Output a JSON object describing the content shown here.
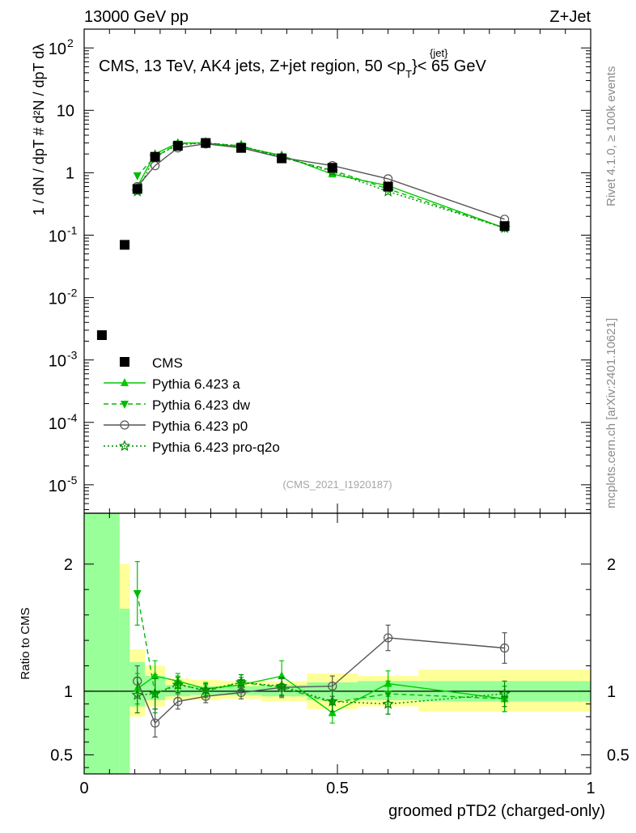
{
  "header": {
    "left": "13000 GeV pp",
    "right": "Z+Jet"
  },
  "side": {
    "rivet": "Rivet 4.1.0, ≥ 100k events",
    "mcplots": "mcplots.cern.ch [arXiv:2401.10621]"
  },
  "chart_data": {
    "type": "line",
    "title": "CMS, 13 TeV, AK4 jets, Z+jet region, 50 <",
    "title_sup": "{jet}",
    "title_sub": "T",
    "title_p": "p",
    "title_end": "}< 65 GeV",
    "analysis_id": "(CMS_2021_I1920187)",
    "xlabel": "groomed pTD2 (charged-only)",
    "ylabel_main": "1 / dN / dpT # d²N / dpT dλ",
    "ylabel_ratio": "Ratio to CMS",
    "xlim": [
      0,
      1
    ],
    "ylim_main": [
      3.5e-06,
      200
    ],
    "ylim_ratio": [
      0.35,
      2.4
    ],
    "x_ticks": [
      "0",
      "0.5",
      "1"
    ],
    "y_ticks_main": [
      "10",
      "1"
    ],
    "y_ticks_main_exp": [
      {
        "base": "10",
        "exp": "2"
      },
      {
        "base": "10",
        "exp": "-1"
      },
      {
        "base": "10",
        "exp": "-2"
      },
      {
        "base": "10",
        "exp": "-3"
      },
      {
        "base": "10",
        "exp": "-4"
      },
      {
        "base": "10",
        "exp": "-5"
      }
    ],
    "y_ticks_ratio": [
      "2",
      "1",
      "0.5"
    ],
    "cms": {
      "name": "CMS",
      "x": [
        0.035,
        0.08,
        0.105,
        0.14,
        0.185,
        0.24,
        0.31,
        0.39,
        0.49,
        0.6,
        0.83
      ],
      "y": [
        0.0025,
        0.07,
        0.55,
        1.8,
        2.7,
        3.0,
        2.5,
        1.7,
        1.2,
        0.6,
        0.14
      ]
    },
    "series": [
      {
        "name": "Pythia 6.423 a",
        "color": "#00cc00",
        "dash": "",
        "marker": "triangle-up",
        "x": [
          0.105,
          0.14,
          0.185,
          0.24,
          0.31,
          0.39,
          0.49,
          0.6,
          0.83
        ],
        "y": [
          0.6,
          2.0,
          3.0,
          3.0,
          2.6,
          1.9,
          0.95,
          0.62,
          0.13
        ],
        "ratio": [
          1.02,
          1.12,
          1.08,
          1.02,
          1.05,
          1.12,
          0.83,
          1.06,
          0.94
        ],
        "ratio_err": [
          0.12,
          0.12,
          0.06,
          0.05,
          0.06,
          0.12,
          0.08,
          0.1,
          0.1
        ]
      },
      {
        "name": "Pythia 6.423 dw",
        "color": "#00bb00",
        "dash": "6,4",
        "marker": "triangle-down",
        "x": [
          0.105,
          0.14,
          0.185,
          0.24,
          0.31,
          0.39,
          0.49,
          0.6,
          0.83
        ],
        "y": [
          0.9,
          1.8,
          2.9,
          3.0,
          2.7,
          1.75,
          1.1,
          0.55,
          0.13
        ],
        "ratio": [
          1.77,
          0.98,
          1.06,
          1.0,
          1.07,
          1.03,
          0.91,
          0.98,
          0.94
        ],
        "ratio_err": [
          0.25,
          0.15,
          0.06,
          0.05,
          0.06,
          0.08,
          0.1,
          0.1,
          0.1
        ]
      },
      {
        "name": "Pythia 6.423 p0",
        "color": "#555555",
        "dash": "",
        "marker": "circle-open",
        "x": [
          0.105,
          0.14,
          0.185,
          0.24,
          0.31,
          0.39,
          0.49,
          0.6,
          0.83
        ],
        "y": [
          0.6,
          1.3,
          2.5,
          2.9,
          2.5,
          1.75,
          1.3,
          0.8,
          0.18
        ],
        "ratio": [
          1.08,
          0.75,
          0.92,
          0.96,
          0.99,
          1.03,
          1.04,
          1.42,
          1.34
        ],
        "ratio_err": [
          0.12,
          0.11,
          0.06,
          0.05,
          0.05,
          0.07,
          0.08,
          0.1,
          0.12
        ]
      },
      {
        "name": "Pythia 6.423 pro-q2o",
        "color": "#008800",
        "dash": "2,3",
        "marker": "star-open",
        "x": [
          0.105,
          0.14,
          0.185,
          0.24,
          0.31,
          0.39,
          0.49,
          0.6,
          0.83
        ],
        "y": [
          0.5,
          1.8,
          2.8,
          3.0,
          2.7,
          1.8,
          1.05,
          0.5,
          0.13
        ],
        "ratio": [
          0.97,
          0.98,
          1.05,
          1.01,
          1.07,
          1.04,
          0.92,
          0.9,
          0.98
        ],
        "ratio_err": [
          0.14,
          0.12,
          0.06,
          0.05,
          0.06,
          0.07,
          0.08,
          0.08,
          0.1
        ]
      }
    ],
    "bands": [
      {
        "x0": 0.0,
        "x1": 0.07,
        "stat_lo": 0.35,
        "stat_hi": 2.4,
        "tot_lo": 0.35,
        "tot_hi": 2.4
      },
      {
        "x0": 0.07,
        "x1": 0.09,
        "stat_lo": 0.35,
        "stat_hi": 1.65,
        "tot_lo": 0.35,
        "tot_hi": 2.0
      },
      {
        "x0": 0.09,
        "x1": 0.12,
        "stat_lo": 0.88,
        "stat_hi": 1.23,
        "tot_lo": 0.8,
        "tot_hi": 1.33
      },
      {
        "x0": 0.12,
        "x1": 0.16,
        "stat_lo": 0.93,
        "stat_hi": 1.12,
        "tot_lo": 0.88,
        "tot_hi": 1.2
      },
      {
        "x0": 0.16,
        "x1": 0.21,
        "stat_lo": 0.96,
        "stat_hi": 1.05,
        "tot_lo": 0.93,
        "tot_hi": 1.1
      },
      {
        "x0": 0.21,
        "x1": 0.27,
        "stat_lo": 0.97,
        "stat_hi": 1.04,
        "tot_lo": 0.93,
        "tot_hi": 1.09
      },
      {
        "x0": 0.27,
        "x1": 0.35,
        "stat_lo": 0.97,
        "stat_hi": 1.04,
        "tot_lo": 0.94,
        "tot_hi": 1.08
      },
      {
        "x0": 0.35,
        "x1": 0.44,
        "stat_lo": 0.96,
        "stat_hi": 1.05,
        "tot_lo": 0.92,
        "tot_hi": 1.08
      },
      {
        "x0": 0.44,
        "x1": 0.54,
        "stat_lo": 0.93,
        "stat_hi": 1.07,
        "tot_lo": 0.86,
        "tot_hi": 1.14
      },
      {
        "x0": 0.54,
        "x1": 0.66,
        "stat_lo": 0.93,
        "stat_hi": 1.08,
        "tot_lo": 0.88,
        "tot_hi": 1.12
      },
      {
        "x0": 0.66,
        "x1": 1.0,
        "stat_lo": 0.92,
        "stat_hi": 1.08,
        "tot_lo": 0.84,
        "tot_hi": 1.17
      }
    ],
    "band_colors": {
      "stat": "#99ff99",
      "total": "#ffff99"
    }
  }
}
